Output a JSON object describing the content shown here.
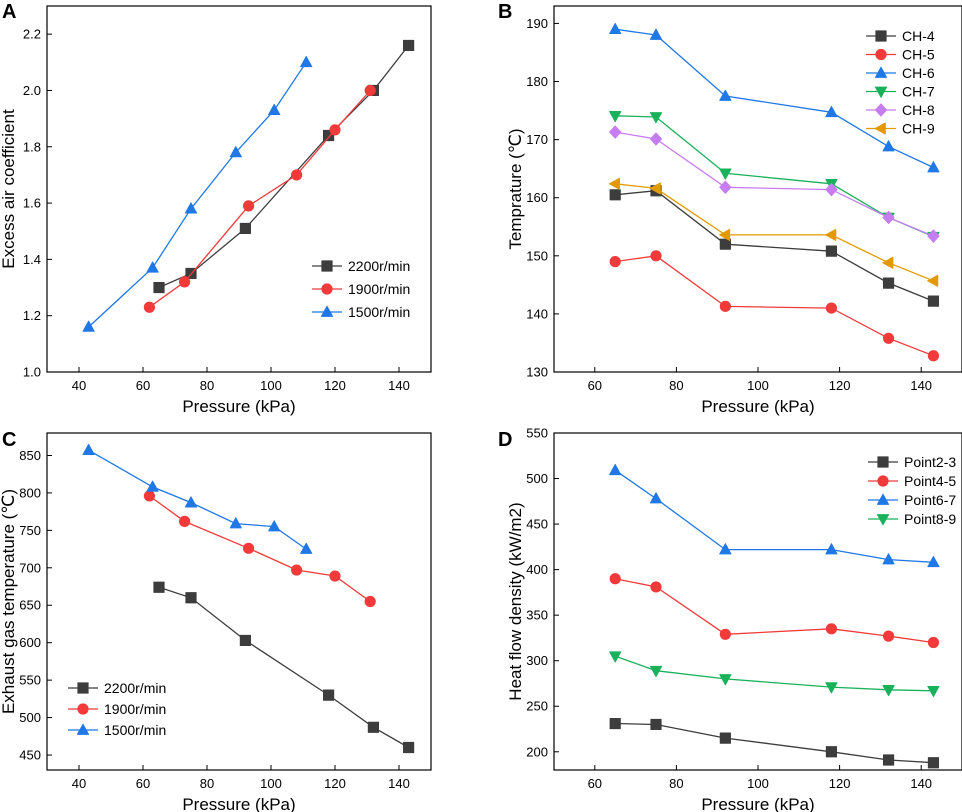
{
  "colors": {
    "black": "#3d3d3d",
    "red": "#f23a3a",
    "blue": "#1f78e6",
    "green": "#19b25a",
    "violet": "#c77df2",
    "orange": "#e39a00"
  },
  "chart_data": [
    {
      "letter": "A",
      "type": "line",
      "xlabel": "Pressure (kPa)",
      "ylabel": "Excess air coefficient",
      "xlim": [
        30,
        150
      ],
      "ylim": [
        1.0,
        2.3
      ],
      "xticks": [
        40,
        60,
        80,
        100,
        120,
        140
      ],
      "yticks": [
        1.0,
        1.2,
        1.4,
        1.6,
        1.8,
        2.0,
        2.2
      ],
      "ytick_labels": [
        "1.0",
        "1.2",
        "1.4",
        "1.6",
        "1.8",
        "2.0",
        "2.2"
      ],
      "legend_position": "bottom-right",
      "series": [
        {
          "name": "2200r/min",
          "color": "black",
          "marker": "square",
          "x": [
            65,
            75,
            92,
            118,
            132,
            143
          ],
          "y": [
            1.3,
            1.35,
            1.51,
            1.84,
            2.0,
            2.16
          ]
        },
        {
          "name": "1900r/min",
          "color": "red",
          "marker": "circle",
          "x": [
            62,
            73,
            93,
            108,
            120,
            131
          ],
          "y": [
            1.23,
            1.32,
            1.59,
            1.7,
            1.86,
            2.0
          ]
        },
        {
          "name": "1500r/min",
          "color": "blue",
          "marker": "triangle-up",
          "x": [
            43,
            63,
            75,
            89,
            101,
            111
          ],
          "y": [
            1.16,
            1.37,
            1.58,
            1.78,
            1.93,
            2.1
          ]
        }
      ]
    },
    {
      "letter": "B",
      "type": "line",
      "xlabel": "Pressure (kPa)",
      "ylabel": "Temprature (℃)",
      "xlim": [
        50,
        150
      ],
      "ylim": [
        130,
        193
      ],
      "xticks": [
        60,
        80,
        100,
        120,
        140
      ],
      "yticks": [
        130,
        140,
        150,
        160,
        170,
        180,
        190
      ],
      "ytick_labels": [
        "130",
        "140",
        "150",
        "160",
        "170",
        "180",
        "190"
      ],
      "legend_position": "top-right",
      "series": [
        {
          "name": "CH-4",
          "color": "black",
          "marker": "square",
          "x": [
            65,
            75,
            92,
            118,
            132,
            143
          ],
          "y": [
            160.5,
            161.2,
            152.0,
            150.8,
            145.3,
            142.2
          ]
        },
        {
          "name": "CH-5",
          "color": "red",
          "marker": "circle",
          "x": [
            65,
            75,
            92,
            118,
            132,
            143
          ],
          "y": [
            149.0,
            150.0,
            141.3,
            141.0,
            135.8,
            132.8
          ]
        },
        {
          "name": "CH-6",
          "color": "blue",
          "marker": "triangle-up",
          "x": [
            65,
            75,
            92,
            118,
            132,
            143
          ],
          "y": [
            189.0,
            188.0,
            177.5,
            174.7,
            168.8,
            165.2
          ]
        },
        {
          "name": "CH-7",
          "color": "green",
          "marker": "triangle-down",
          "x": [
            65,
            75,
            92,
            118,
            132,
            143
          ],
          "y": [
            174.1,
            173.9,
            164.2,
            162.4,
            156.6,
            153.3
          ]
        },
        {
          "name": "CH-8",
          "color": "violet",
          "marker": "diamond",
          "x": [
            65,
            75,
            92,
            118,
            132,
            143
          ],
          "y": [
            171.3,
            170.1,
            161.8,
            161.4,
            156.6,
            153.4
          ]
        },
        {
          "name": "CH-9",
          "color": "orange",
          "marker": "triangle-left",
          "x": [
            65,
            75,
            92,
            118,
            132,
            143
          ],
          "y": [
            162.4,
            161.6,
            153.6,
            153.6,
            148.8,
            145.7
          ]
        }
      ]
    },
    {
      "letter": "C",
      "type": "line",
      "xlabel": "Pressure (kPa)",
      "ylabel": "Exhaust gas temperature (℃)",
      "xlim": [
        30,
        150
      ],
      "ylim": [
        430,
        880
      ],
      "xticks": [
        40,
        60,
        80,
        100,
        120,
        140
      ],
      "yticks": [
        450,
        500,
        550,
        600,
        650,
        700,
        750,
        800,
        850
      ],
      "ytick_labels": [
        "450",
        "500",
        "550",
        "600",
        "650",
        "700",
        "750",
        "800",
        "850"
      ],
      "legend_position": "bottom-left",
      "series": [
        {
          "name": "2200r/min",
          "color": "black",
          "marker": "square",
          "x": [
            65,
            75,
            92,
            118,
            132,
            143
          ],
          "y": [
            674,
            660,
            603,
            530,
            487,
            460
          ]
        },
        {
          "name": "1900r/min",
          "color": "red",
          "marker": "circle",
          "x": [
            62,
            73,
            93,
            108,
            120,
            131
          ],
          "y": [
            796,
            762,
            726,
            697,
            689,
            655
          ]
        },
        {
          "name": "1500r/min",
          "color": "blue",
          "marker": "triangle-up",
          "x": [
            43,
            63,
            75,
            89,
            101,
            111
          ],
          "y": [
            857,
            808,
            787,
            759,
            755,
            725
          ]
        }
      ]
    },
    {
      "letter": "D",
      "type": "line",
      "xlabel": "Pressure (kPa)",
      "ylabel": "Heat flow density (kW/m2)",
      "xlim": [
        50,
        150
      ],
      "ylim": [
        180,
        550
      ],
      "xticks": [
        60,
        80,
        100,
        120,
        140
      ],
      "yticks": [
        200,
        250,
        300,
        350,
        400,
        450,
        500,
        550
      ],
      "ytick_labels": [
        "200",
        "250",
        "300",
        "350",
        "400",
        "450",
        "500",
        "550"
      ],
      "legend_position": "top-right",
      "series": [
        {
          "name": "Point2-3",
          "color": "black",
          "marker": "square",
          "x": [
            65,
            75,
            92,
            118,
            132,
            143
          ],
          "y": [
            231,
            230,
            215,
            200,
            191,
            188
          ]
        },
        {
          "name": "Point4-5",
          "color": "red",
          "marker": "circle",
          "x": [
            65,
            75,
            92,
            118,
            132,
            143
          ],
          "y": [
            390,
            381,
            329,
            335,
            327,
            320
          ]
        },
        {
          "name": "Point6-7",
          "color": "blue",
          "marker": "triangle-up",
          "x": [
            65,
            75,
            92,
            118,
            132,
            143
          ],
          "y": [
            509,
            478,
            422,
            422,
            411,
            408
          ]
        },
        {
          "name": "Point8-9",
          "color": "green",
          "marker": "triangle-down",
          "x": [
            65,
            75,
            92,
            118,
            132,
            143
          ],
          "y": [
            305,
            289,
            280,
            271,
            268,
            267
          ]
        }
      ]
    }
  ]
}
